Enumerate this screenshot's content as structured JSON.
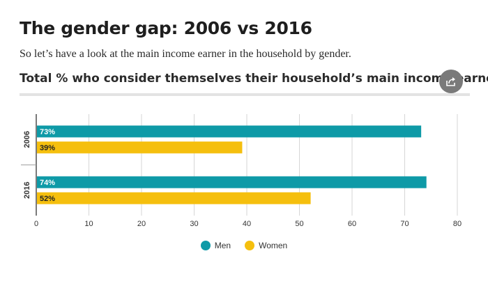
{
  "header": {
    "headline": "The gender gap: 2006 vs 2016",
    "intro": "So let’s have a look at the main income earner in the household by gender."
  },
  "share": {
    "icon": "share-icon"
  },
  "colors": {
    "men": "#0e9aa7",
    "women": "#f5bf0e",
    "grid": "#d6d6d6",
    "axis": "#222222"
  },
  "chart_data": {
    "type": "bar",
    "orientation": "horizontal",
    "title": "Total % who consider themselves their household’s main income earner",
    "categories": [
      "2006",
      "2016"
    ],
    "series": [
      {
        "name": "Men",
        "values": [
          73,
          74
        ],
        "labels": [
          "73%",
          "74%"
        ]
      },
      {
        "name": "Women",
        "values": [
          39,
          52
        ],
        "labels": [
          "39%",
          "52%"
        ]
      }
    ],
    "xlim": [
      0,
      80
    ],
    "xticks": [
      "0",
      "10",
      "20",
      "30",
      "40",
      "50",
      "60",
      "70",
      "80"
    ],
    "xtick_values": [
      0,
      10,
      20,
      30,
      40,
      50,
      60,
      70,
      80
    ],
    "grid": true,
    "legend": "bottom-center"
  }
}
